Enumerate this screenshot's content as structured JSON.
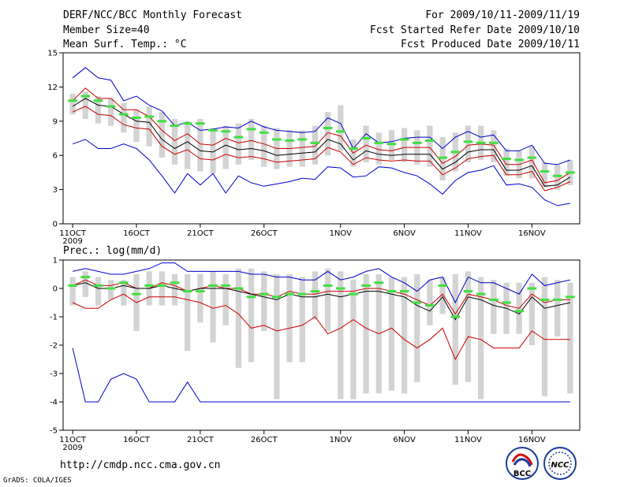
{
  "header": {
    "title": "DERF/NCC/BCC Monthly Forecast",
    "member_size": "Member Size=40",
    "period": "For 2009/10/11-2009/11/19",
    "started": "Fcst Started Refer Date 2009/10/10",
    "produced": "Fcst Produced Date 2009/10/11"
  },
  "footer": {
    "url": "http://cmdp.ncc.cma.gov.cn",
    "grads": "GrADS: COLA/IGES",
    "logo_bcc": "BCC",
    "logo_ncc": "NCC"
  },
  "colors": {
    "box": "#d3d3d3",
    "mean": "#40e040",
    "median": "#000000",
    "quartile": "#cc0000",
    "extreme": "#0000cc"
  },
  "chart_data": [
    {
      "type": "boxplot",
      "title": "Mean Surf. Temp.: °C",
      "ylim": [
        0,
        15
      ],
      "yticks": [
        0,
        3,
        6,
        9,
        12,
        15
      ],
      "x_tick_labels": [
        "11OCT",
        "16OCT",
        "21OCT",
        "26OCT",
        "1NOV",
        "6NOV",
        "11NOV",
        "16NOV"
      ],
      "x_tick_days": [
        1,
        6,
        11,
        16,
        22,
        27,
        32,
        37
      ],
      "x_year_label": "2009",
      "days": 40,
      "series": [
        {
          "name": "box_top",
          "values": [
            11.4,
            11.6,
            11.2,
            11.0,
            10.6,
            10.0,
            10.3,
            9.8,
            9.2,
            9.0,
            9.2,
            8.4,
            8.6,
            8.8,
            9.2,
            8.6,
            8.4,
            8.2,
            8.2,
            8.6,
            9.8,
            10.4,
            7.4,
            8.6,
            8.0,
            8.2,
            8.4,
            8.2,
            8.6,
            7.6,
            8.0,
            8.6,
            8.6,
            8.2,
            6.6,
            6.4,
            6.8,
            5.4,
            5.2,
            5.6
          ]
        },
        {
          "name": "box_bottom",
          "values": [
            9.6,
            9.2,
            8.8,
            8.6,
            8.0,
            7.2,
            6.8,
            5.8,
            5.2,
            4.8,
            4.6,
            4.4,
            4.8,
            5.2,
            5.6,
            5.0,
            4.8,
            5.0,
            5.0,
            5.2,
            6.0,
            6.4,
            5.0,
            5.4,
            5.2,
            5.6,
            5.4,
            5.2,
            5.0,
            3.8,
            4.6,
            5.4,
            5.6,
            5.4,
            4.2,
            4.0,
            4.0,
            3.2,
            3.0,
            3.4
          ]
        },
        {
          "name": "mean",
          "values": [
            10.8,
            11.2,
            10.8,
            10.3,
            9.6,
            9.3,
            9.4,
            9.0,
            8.6,
            8.8,
            8.8,
            8.2,
            8.1,
            7.6,
            8.3,
            8.0,
            7.4,
            7.3,
            7.4,
            7.1,
            8.4,
            8.1,
            6.6,
            7.5,
            7.1,
            7.0,
            7.4,
            7.1,
            7.3,
            5.8,
            6.3,
            7.2,
            7.1,
            7.1,
            5.7,
            5.6,
            5.8,
            4.6,
            4.2,
            4.5
          ]
        },
        {
          "name": "max",
          "values": [
            12.8,
            13.7,
            12.8,
            12.6,
            10.8,
            11.2,
            10.4,
            9.9,
            8.6,
            8.9,
            8.2,
            8.3,
            8.5,
            8.4,
            9.0,
            8.5,
            8.2,
            8.1,
            8.0,
            8.1,
            9.3,
            8.8,
            6.6,
            7.9,
            7.1,
            7.2,
            7.5,
            7.6,
            7.6,
            6.6,
            7.6,
            8.1,
            7.6,
            7.8,
            6.4,
            6.4,
            6.9,
            5.3,
            5.2,
            5.6
          ]
        },
        {
          "name": "q3",
          "values": [
            10.8,
            11.9,
            11.0,
            11.0,
            10.0,
            10.0,
            9.4,
            8.2,
            7.3,
            7.9,
            7.0,
            6.9,
            7.5,
            7.1,
            7.3,
            7.0,
            6.6,
            6.6,
            6.7,
            6.8,
            8.0,
            7.7,
            6.2,
            6.9,
            6.5,
            6.4,
            6.7,
            6.7,
            6.7,
            5.3,
            5.9,
            6.9,
            7.0,
            6.9,
            5.2,
            5.2,
            5.6,
            3.6,
            3.8,
            4.5
          ]
        },
        {
          "name": "median",
          "values": [
            10.3,
            11.0,
            10.4,
            10.3,
            9.6,
            9.0,
            8.9,
            7.4,
            6.6,
            7.2,
            6.4,
            6.3,
            6.9,
            6.5,
            6.6,
            6.4,
            6.0,
            6.1,
            6.2,
            6.3,
            7.4,
            7.0,
            5.6,
            6.4,
            6.1,
            6.0,
            6.1,
            6.1,
            6.1,
            4.8,
            5.4,
            6.3,
            6.5,
            6.5,
            4.7,
            4.7,
            5.1,
            3.3,
            3.4,
            4.1
          ]
        },
        {
          "name": "q1",
          "values": [
            9.8,
            10.3,
            9.6,
            9.5,
            8.7,
            8.4,
            8.3,
            6.8,
            6.1,
            6.5,
            5.7,
            5.6,
            6.1,
            5.8,
            5.9,
            5.7,
            5.4,
            5.5,
            5.6,
            5.7,
            6.7,
            6.3,
            5.2,
            5.8,
            5.6,
            5.5,
            5.6,
            5.5,
            5.5,
            4.3,
            4.9,
            5.7,
            5.9,
            6.0,
            4.3,
            4.3,
            4.6,
            2.9,
            3.2,
            3.7
          ]
        },
        {
          "name": "min",
          "values": [
            7.0,
            7.4,
            6.6,
            6.6,
            7.0,
            6.6,
            5.6,
            4.2,
            2.7,
            4.4,
            3.4,
            4.4,
            2.7,
            4.2,
            3.6,
            3.3,
            3.5,
            3.7,
            4.0,
            3.9,
            5.0,
            4.9,
            4.1,
            4.2,
            5.0,
            4.9,
            4.5,
            4.2,
            3.5,
            2.6,
            3.8,
            4.5,
            4.7,
            5.1,
            3.4,
            3.5,
            3.2,
            2.1,
            1.6,
            1.8
          ]
        }
      ]
    },
    {
      "type": "boxplot",
      "title": "Prec.: log(mm/d)",
      "ylim": [
        -5,
        1
      ],
      "yticks": [
        -5,
        -4,
        -3,
        -2,
        -1,
        0,
        1
      ],
      "x_tick_labels": [
        "11OCT",
        "16OCT",
        "21OCT",
        "26OCT",
        "1NOV",
        "6NOV",
        "11NOV",
        "16NOV"
      ],
      "x_tick_days": [
        1,
        6,
        11,
        16,
        22,
        27,
        32,
        37
      ],
      "x_year_label": "2009",
      "days": 40,
      "series": [
        {
          "name": "box_top",
          "values": [
            0.4,
            0.6,
            0.4,
            0.3,
            0.3,
            0.5,
            0.6,
            0.6,
            0.5,
            0.5,
            0.5,
            0.6,
            0.5,
            0.7,
            0.7,
            0.6,
            0.5,
            0.5,
            0.4,
            0.6,
            0.7,
            0.6,
            0.3,
            0.5,
            0.5,
            0.4,
            0.4,
            0.5,
            0.3,
            0.4,
            0.5,
            0.6,
            0.4,
            0.3,
            0.2,
            0.2,
            0.2,
            0.4,
            0.3,
            0.2
          ]
        },
        {
          "name": "box_bottom",
          "values": [
            -0.6,
            -0.3,
            -0.6,
            -0.4,
            -0.6,
            -1.5,
            -0.6,
            -0.6,
            -0.6,
            -2.2,
            -1.2,
            -1.9,
            -1.3,
            -2.8,
            -2.6,
            -1.5,
            -3.9,
            -2.6,
            -2.6,
            -1.1,
            -1.5,
            -3.9,
            -3.9,
            -3.7,
            -3.7,
            -3.6,
            -3.7,
            -3.3,
            -1.3,
            -0.9,
            -3.4,
            -3.3,
            -3.9,
            -1.6,
            -1.6,
            -1.6,
            -2.0,
            -3.8,
            -1.7,
            -3.7
          ]
        },
        {
          "name": "mean",
          "values": [
            0.1,
            0.4,
            0.1,
            0.0,
            0.2,
            -0.2,
            0.1,
            0.1,
            0.2,
            -0.1,
            -0.1,
            0.1,
            0.1,
            0.0,
            -0.3,
            -0.2,
            -0.3,
            -0.2,
            -0.2,
            -0.1,
            0.1,
            0.0,
            -0.2,
            0.1,
            0.2,
            -0.1,
            -0.1,
            -0.5,
            -0.6,
            0.1,
            -1.0,
            -0.1,
            -0.2,
            -0.4,
            -0.5,
            -0.8,
            0.0,
            -0.4,
            -0.4,
            -0.3
          ]
        },
        {
          "name": "max",
          "values": [
            0.6,
            0.7,
            0.6,
            0.5,
            0.5,
            0.6,
            0.7,
            0.9,
            0.9,
            0.6,
            0.6,
            0.6,
            0.6,
            0.6,
            0.5,
            0.5,
            0.4,
            0.4,
            0.3,
            0.3,
            0.6,
            0.3,
            0.4,
            0.6,
            0.7,
            0.4,
            0.2,
            -0.1,
            0.3,
            0.4,
            -0.5,
            0.4,
            0.2,
            0.2,
            0.0,
            -0.2,
            0.5,
            0.1,
            0.2,
            0.3
          ]
        },
        {
          "name": "q3",
          "values": [
            0.1,
            0.3,
            0.1,
            0.1,
            0.2,
            0.0,
            0.0,
            0.2,
            0.1,
            -0.1,
            0.0,
            0.1,
            0.0,
            0.0,
            -0.2,
            -0.2,
            -0.3,
            -0.1,
            -0.2,
            -0.2,
            -0.1,
            -0.1,
            -0.1,
            0.0,
            0.0,
            -0.1,
            -0.2,
            -0.4,
            -0.6,
            -0.2,
            -0.9,
            -0.2,
            -0.3,
            -0.4,
            -0.6,
            -0.7,
            -0.2,
            -0.5,
            -0.4,
            -0.4
          ]
        },
        {
          "name": "median",
          "values": [
            0.1,
            0.2,
            0.0,
            0.0,
            0.1,
            0.0,
            0.0,
            0.1,
            0.0,
            -0.1,
            0.0,
            0.0,
            0.0,
            -0.1,
            -0.2,
            -0.3,
            -0.4,
            -0.2,
            -0.3,
            -0.3,
            -0.2,
            -0.3,
            -0.2,
            -0.1,
            -0.1,
            -0.2,
            -0.3,
            -0.6,
            -0.8,
            -0.3,
            -1.1,
            -0.3,
            -0.4,
            -0.6,
            -0.7,
            -0.9,
            -0.3,
            -0.7,
            -0.6,
            -0.5
          ]
        },
        {
          "name": "q1",
          "values": [
            -0.5,
            -0.7,
            -0.7,
            -0.4,
            -0.2,
            -0.5,
            -0.3,
            -0.3,
            -0.3,
            -0.4,
            -0.5,
            -0.7,
            -0.6,
            -0.9,
            -1.4,
            -1.3,
            -1.5,
            -1.4,
            -1.3,
            -1.0,
            -1.6,
            -1.4,
            -1.1,
            -1.4,
            -1.6,
            -1.4,
            -1.8,
            -2.1,
            -1.8,
            -1.4,
            -2.5,
            -1.7,
            -1.8,
            -2.1,
            -2.1,
            -2.1,
            -1.5,
            -1.8,
            -1.8,
            -1.8
          ]
        },
        {
          "name": "min",
          "values": [
            -2.1,
            -4.0,
            -4.0,
            -3.2,
            -3.0,
            -3.2,
            -4.0,
            -4.0,
            -4.0,
            -3.3,
            -4.0,
            -4.0,
            -4.0,
            -4.0,
            -4.0,
            -4.0,
            -4.0,
            -4.0,
            -4.0,
            -4.0,
            -4.0,
            -4.0,
            -4.0,
            -4.0,
            -4.0,
            -4.0,
            -4.0,
            -4.0,
            -4.0,
            -4.0,
            -4.0,
            -4.0,
            -4.0,
            -4.0,
            -4.0,
            -4.0,
            -4.0,
            -4.0,
            -4.0,
            -4.0
          ]
        }
      ]
    }
  ]
}
